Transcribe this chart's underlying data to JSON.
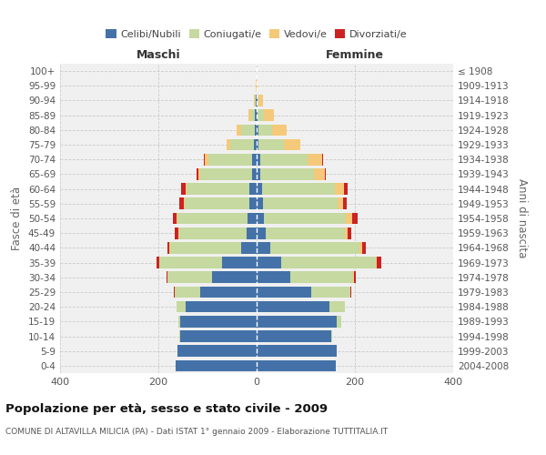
{
  "age_groups": [
    "0-4",
    "5-9",
    "10-14",
    "15-19",
    "20-24",
    "25-29",
    "30-34",
    "35-39",
    "40-44",
    "45-49",
    "50-54",
    "55-59",
    "60-64",
    "65-69",
    "70-74",
    "75-79",
    "80-84",
    "85-89",
    "90-94",
    "95-99",
    "100+"
  ],
  "birth_years": [
    "2004-2008",
    "1999-2003",
    "1994-1998",
    "1989-1993",
    "1984-1988",
    "1979-1983",
    "1974-1978",
    "1969-1973",
    "1964-1968",
    "1959-1963",
    "1954-1958",
    "1949-1953",
    "1944-1948",
    "1939-1943",
    "1934-1938",
    "1929-1933",
    "1924-1928",
    "1919-1923",
    "1914-1918",
    "1909-1913",
    "≤ 1908"
  ],
  "colors": {
    "celibi": "#4472a8",
    "coniugati": "#c5d9a0",
    "vedovi": "#f5c97a",
    "divorziati": "#cc2222"
  },
  "maschi": {
    "celibi": [
      165,
      162,
      155,
      155,
      145,
      115,
      90,
      70,
      32,
      20,
      18,
      15,
      14,
      10,
      10,
      5,
      4,
      3,
      1,
      0,
      0
    ],
    "coniugati": [
      0,
      0,
      2,
      4,
      18,
      52,
      92,
      128,
      144,
      138,
      143,
      132,
      128,
      104,
      88,
      48,
      28,
      8,
      2,
      0,
      0
    ],
    "vedovi": [
      0,
      0,
      0,
      0,
      0,
      0,
      0,
      1,
      1,
      2,
      2,
      2,
      3,
      5,
      8,
      8,
      9,
      6,
      3,
      1,
      0
    ],
    "divorziati": [
      0,
      0,
      0,
      0,
      0,
      1,
      2,
      5,
      5,
      7,
      8,
      8,
      8,
      4,
      2,
      0,
      0,
      0,
      0,
      0,
      0
    ]
  },
  "femmine": {
    "nubili": [
      162,
      163,
      152,
      163,
      148,
      112,
      68,
      50,
      28,
      18,
      14,
      13,
      12,
      8,
      7,
      4,
      3,
      2,
      1,
      0,
      0
    ],
    "coniugate": [
      0,
      0,
      2,
      10,
      32,
      78,
      128,
      192,
      182,
      162,
      168,
      152,
      148,
      108,
      96,
      52,
      28,
      12,
      3,
      0,
      0
    ],
    "vedove": [
      0,
      0,
      0,
      0,
      0,
      1,
      2,
      3,
      5,
      5,
      12,
      10,
      18,
      22,
      30,
      32,
      30,
      22,
      9,
      2,
      0
    ],
    "divorziate": [
      0,
      0,
      0,
      0,
      0,
      2,
      4,
      8,
      8,
      8,
      12,
      8,
      8,
      3,
      2,
      0,
      0,
      0,
      0,
      0,
      0
    ]
  },
  "xlim": 400,
  "title": "Popolazione per età, sesso e stato civile - 2009",
  "subtitle": "COMUNE DI ALTAVILLA MILICIA (PA) - Dati ISTAT 1° gennaio 2009 - Elaborazione TUTTITALIA.IT",
  "ylabel_left": "Fasce di età",
  "ylabel_right": "Anni di nascita",
  "legend_labels": [
    "Celibi/Nubili",
    "Coniugati/e",
    "Vedovi/e",
    "Divorziati/e"
  ],
  "maschi_label": "Maschi",
  "femmine_label": "Femmine",
  "bg_color": "#f0f0f0",
  "grid_color": "#cccccc"
}
